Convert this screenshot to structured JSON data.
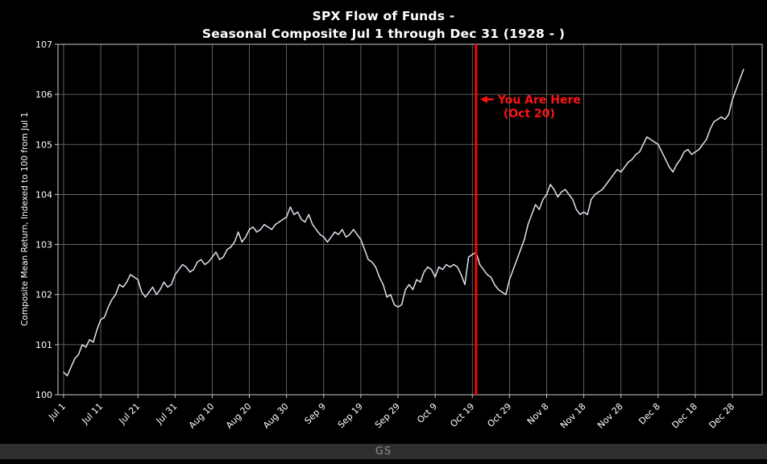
{
  "title": {
    "line1": "SPX Flow of Funds -",
    "line2": "Seasonal Composite Jul 1 through Dec 31 (1928 - )"
  },
  "annotation": {
    "line1": "You Are Here",
    "line2": "(Oct 20)"
  },
  "footer": {
    "watermark": "GS"
  },
  "colors": {
    "background": "#000000",
    "grid": "#787878",
    "axis": "#cccccc",
    "tick_text": "#ffffff",
    "title_text": "#ffffff",
    "series_line": "#dfe3ee",
    "marker_line": "#ff0000",
    "annotation_text": "#ff1414",
    "footer_bg": "#2f2f2f",
    "footer_text": "#8f8f8f"
  },
  "chart_data": {
    "type": "line",
    "title": "SPX Flow of Funds - Seasonal Composite Jul 1 through Dec 31 (1928 - )",
    "xlabel": "",
    "ylabel": "Composite Mean Return, Indexed to 100 from Jul 1",
    "ylim": [
      100,
      107
    ],
    "y_ticks": [
      100,
      101,
      102,
      103,
      104,
      105,
      106,
      107
    ],
    "x_tick_labels": [
      "Jul 1",
      "Jul 11",
      "Jul 21",
      "Jul 31",
      "Aug 10",
      "Aug 20",
      "Aug 30",
      "Sep 9",
      "Sep 19",
      "Sep 29",
      "Oct 9",
      "Oct 19",
      "Oct 29",
      "Nov 8",
      "Nov 18",
      "Nov 28",
      "Dec 8",
      "Dec 18",
      "Dec 28"
    ],
    "x_tick_days": [
      0,
      10,
      20,
      30,
      40,
      50,
      60,
      70,
      80,
      90,
      100,
      110,
      120,
      130,
      140,
      150,
      160,
      170,
      180
    ],
    "x_range_days": [
      -1.5,
      188
    ],
    "x_unit": "days since Jul 1",
    "x_start": 0,
    "x_step": 1,
    "grid": true,
    "legend": false,
    "marker_line_day": 111,
    "annotation_y": 105.9,
    "series": [
      {
        "name": "Composite Mean Return, Indexed to 100 from Jul 1",
        "y": [
          100.45,
          100.38,
          100.55,
          100.72,
          100.8,
          101.0,
          100.95,
          101.1,
          101.05,
          101.3,
          101.5,
          101.55,
          101.75,
          101.9,
          102.0,
          102.2,
          102.15,
          102.25,
          102.4,
          102.35,
          102.3,
          102.05,
          101.95,
          102.05,
          102.15,
          102.0,
          102.1,
          102.25,
          102.15,
          102.2,
          102.4,
          102.5,
          102.6,
          102.55,
          102.45,
          102.5,
          102.65,
          102.7,
          102.6,
          102.65,
          102.75,
          102.85,
          102.7,
          102.75,
          102.9,
          102.95,
          103.05,
          103.25,
          103.05,
          103.15,
          103.3,
          103.35,
          103.25,
          103.3,
          103.4,
          103.35,
          103.3,
          103.4,
          103.45,
          103.5,
          103.55,
          103.75,
          103.6,
          103.65,
          103.5,
          103.45,
          103.6,
          103.4,
          103.3,
          103.2,
          103.15,
          103.05,
          103.15,
          103.25,
          103.2,
          103.3,
          103.15,
          103.2,
          103.3,
          103.2,
          103.1,
          102.9,
          102.7,
          102.65,
          102.55,
          102.35,
          102.2,
          101.95,
          102.0,
          101.8,
          101.75,
          101.8,
          102.1,
          102.2,
          102.1,
          102.3,
          102.25,
          102.45,
          102.55,
          102.5,
          102.35,
          102.55,
          102.5,
          102.6,
          102.55,
          102.6,
          102.55,
          102.4,
          102.2,
          102.75,
          102.8,
          102.85,
          102.6,
          102.5,
          102.4,
          102.35,
          102.2,
          102.1,
          102.05,
          102.0,
          102.3,
          102.5,
          102.7,
          102.9,
          103.1,
          103.4,
          103.6,
          103.8,
          103.7,
          103.9,
          104.0,
          104.2,
          104.1,
          103.95,
          104.05,
          104.1,
          104.0,
          103.9,
          103.7,
          103.6,
          103.65,
          103.6,
          103.9,
          104.0,
          104.05,
          104.1,
          104.2,
          104.3,
          104.4,
          104.5,
          104.45,
          104.55,
          104.65,
          104.7,
          104.8,
          104.85,
          105.0,
          105.15,
          105.1,
          105.05,
          105.0,
          104.85,
          104.7,
          104.55,
          104.45,
          104.6,
          104.7,
          104.85,
          104.9,
          104.8,
          104.85,
          104.9,
          105.0,
          105.1,
          105.3,
          105.45,
          105.5,
          105.55,
          105.5,
          105.6,
          105.9,
          106.1,
          106.3,
          106.5
        ]
      }
    ]
  }
}
